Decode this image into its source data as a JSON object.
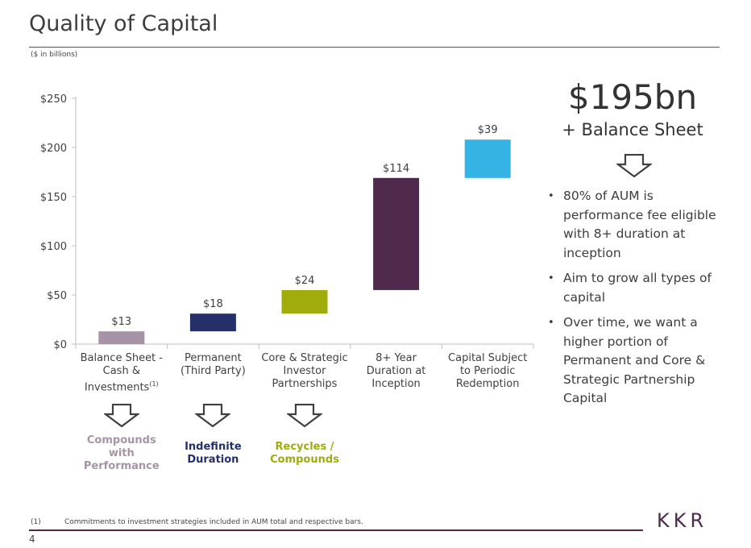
{
  "slide": {
    "title": "Quality of Capital",
    "subtitle": "($ in billions)",
    "page_number": "4",
    "logo_text": "KKR",
    "footnote_marker": "(1)",
    "footnote_text": "Commitments to investment strategies included in AUM total and respective bars."
  },
  "chart_data": {
    "type": "bar",
    "subtype": "waterfall",
    "categories": [
      "Balance Sheet - Cash & Investments",
      "Permanent (Third Party)",
      "Core & Strategic Investor Partnerships",
      "8+ Year Duration at Inception",
      "Capital Subject to Periodic Redemption"
    ],
    "category_lines": [
      [
        "Balance Sheet -",
        "Cash &",
        "Investments"
      ],
      [
        "Permanent",
        "(Third Party)"
      ],
      [
        "Core & Strategic",
        "Investor",
        "Partnerships"
      ],
      [
        "8+ Year",
        "Duration at",
        "Inception"
      ],
      [
        "Capital Subject",
        "to Periodic",
        "Redemption"
      ]
    ],
    "category_footnote": [
      true,
      false,
      false,
      false,
      false
    ],
    "values": [
      13,
      18,
      24,
      114,
      39
    ],
    "data_labels": [
      "$13",
      "$18",
      "$24",
      "$114",
      "$39"
    ],
    "colors": [
      "#a793a7",
      "#25306b",
      "#a0ac0b",
      "#4f2a4d",
      "#34b3e4"
    ],
    "ylim": [
      0,
      250
    ],
    "yticks": [
      0,
      50,
      100,
      150,
      200,
      250
    ],
    "ytick_labels": [
      "$0",
      "$50",
      "$100",
      "$150",
      "$200",
      "$250"
    ],
    "grid": false,
    "legend": "none"
  },
  "notes": [
    {
      "text": "Compounds\nwith\nPerformance",
      "color": "#a793a7"
    },
    {
      "text": "Indefinite\nDuration",
      "color": "#25306b"
    },
    {
      "text": "Recycles /\nCompounds",
      "color": "#a0ac0b"
    }
  ],
  "summary": {
    "total": "$195bn",
    "total_sub": "+ Balance Sheet",
    "bullets": [
      "80% of AUM is performance fee eligible with 8+ duration at inception",
      "Aim to grow all types of capital",
      "Over time, we want a higher portion of Permanent and Core & Strategic Partnership Capital"
    ]
  }
}
